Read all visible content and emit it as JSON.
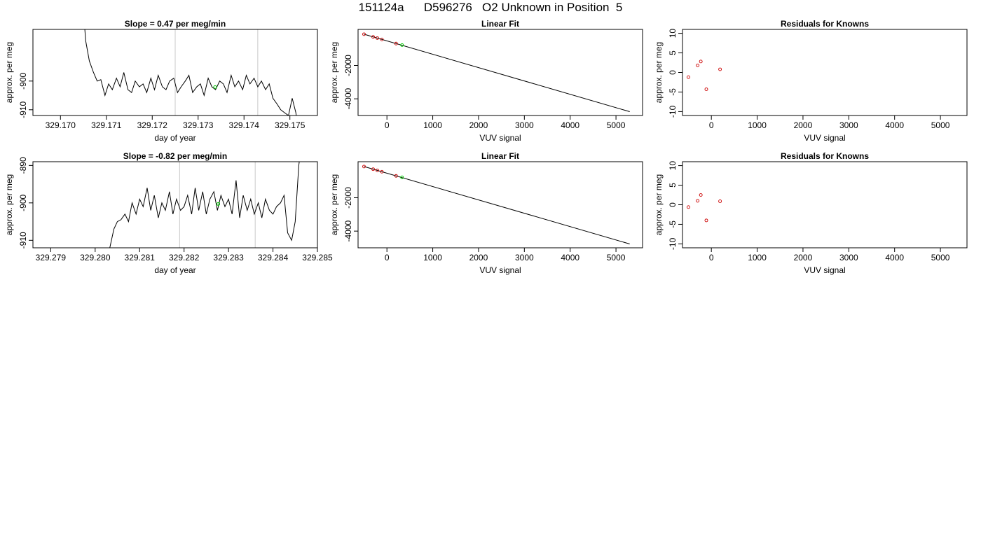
{
  "page_title": "151124a      D596276   O2 Unknown in Position  5",
  "chart_data": [
    {
      "type": "line",
      "title": "Slope =  0.47  per meg/min",
      "xlabel": "day of year",
      "ylabel": "approx. per meg",
      "xlim": [
        329.1694,
        329.1756
      ],
      "ylim": [
        -912,
        -882
      ],
      "xticks": [
        "329.170",
        "329.171",
        "329.172",
        "329.173",
        "329.174",
        "329.175"
      ],
      "xtick_values": [
        329.17,
        329.171,
        329.172,
        329.173,
        329.174,
        329.175
      ],
      "yticks": [
        "-910",
        "-900"
      ],
      "ytick_values": [
        -910,
        -900
      ],
      "vlines": [
        329.1725,
        329.1743
      ],
      "line_color": "#000000",
      "vline_color": "#c8c8c8",
      "highlight_color": "#00cc00",
      "highlight": {
        "x": 329.17337,
        "y": -902.1
      },
      "x": [
        329.17055,
        329.17063,
        329.17072,
        329.1708,
        329.17088,
        329.17097,
        329.17105,
        329.17113,
        329.17122,
        329.1713,
        329.17138,
        329.17147,
        329.17155,
        329.17163,
        329.17172,
        329.1718,
        329.17188,
        329.17197,
        329.17205,
        329.17213,
        329.17222,
        329.1723,
        329.17238,
        329.17247,
        329.17255,
        329.17263,
        329.17272,
        329.1728,
        329.17288,
        329.17297,
        329.17305,
        329.17313,
        329.17322,
        329.1733,
        329.17338,
        329.17347,
        329.17355,
        329.17363,
        329.17372,
        329.1738,
        329.17388,
        329.17397,
        329.17405,
        329.17413,
        329.17422,
        329.1743,
        329.17438,
        329.17447,
        329.17455,
        329.17463,
        329.17472,
        329.1748,
        329.17488,
        329.17497,
        329.17505,
        329.17513
      ],
      "y": [
        -886,
        -893,
        -897,
        -900,
        -899.5,
        -905,
        -901,
        -903,
        -899,
        -902,
        -897,
        -903,
        -904,
        -900,
        -902,
        -901,
        -904,
        -899,
        -903,
        -898,
        -902,
        -903,
        -900,
        -899,
        -904,
        -902,
        -900,
        -898,
        -904,
        -902,
        -901,
        -905,
        -899,
        -902,
        -903,
        -900,
        -901,
        -904,
        -898,
        -902,
        -900,
        -903,
        -898,
        -901,
        -899,
        -902,
        -900,
        -903,
        -901,
        -906,
        -908,
        -910,
        -911,
        -912,
        -906,
        -911
      ],
      "start_above": true,
      "end_below": true
    },
    {
      "type": "scatter",
      "title": "Linear Fit",
      "xlabel": "VUV signal",
      "ylabel": "approx. per meg",
      "xlim": [
        -630,
        5580
      ],
      "ylim": [
        -5000,
        160
      ],
      "xticks": [
        "0",
        "1000",
        "2000",
        "3000",
        "4000",
        "5000"
      ],
      "xtick_values": [
        0,
        1000,
        2000,
        3000,
        4000,
        5000
      ],
      "yticks": [
        "-4000",
        "-2000"
      ],
      "ytick_values": [
        -4000,
        -2000
      ],
      "points_color": "#cc0000",
      "highlight_color": "#00cc00",
      "line_color": "#000000",
      "fit_line": {
        "x": [
          -500,
          5300
        ],
        "y": [
          -130,
          -4770
        ]
      },
      "points": [
        {
          "x": -500,
          "y": -130
        },
        {
          "x": -300,
          "y": -290
        },
        {
          "x": -210,
          "y": -360
        },
        {
          "x": -110,
          "y": -440
        },
        {
          "x": 200,
          "y": -690
        }
      ],
      "highlight": {
        "x": 330,
        "y": -780
      }
    },
    {
      "type": "scatter",
      "title": "Residuals for Knowns",
      "xlabel": "VUV signal",
      "ylabel": "approx. per meg",
      "xlim": [
        -630,
        5580
      ],
      "ylim": [
        -11,
        11
      ],
      "xticks": [
        "0",
        "1000",
        "2000",
        "3000",
        "4000",
        "5000"
      ],
      "xtick_values": [
        0,
        1000,
        2000,
        3000,
        4000,
        5000
      ],
      "yticks": [
        "-10",
        "-5",
        "0",
        "5",
        "10"
      ],
      "ytick_values": [
        -10,
        -5,
        0,
        5,
        10
      ],
      "points_color": "#cc0000",
      "points": [
        {
          "x": -500,
          "y": -1.2
        },
        {
          "x": -300,
          "y": 1.8
        },
        {
          "x": -230,
          "y": 2.8
        },
        {
          "x": -110,
          "y": -4.3
        },
        {
          "x": 190,
          "y": 0.8
        }
      ]
    },
    {
      "type": "line",
      "title": "Slope =  -0.82  per meg/min",
      "xlabel": "day of year",
      "ylabel": "approx. per meg",
      "xlim": [
        329.2786,
        329.285
      ],
      "ylim": [
        -912,
        -889
      ],
      "xticks": [
        "329.279",
        "329.280",
        "329.281",
        "329.282",
        "329.283",
        "329.284",
        "329.285"
      ],
      "xtick_values": [
        329.279,
        329.28,
        329.281,
        329.282,
        329.283,
        329.284,
        329.285
      ],
      "yticks": [
        "-910",
        "-900",
        "-890"
      ],
      "ytick_values": [
        -910,
        -900,
        -890
      ],
      "vlines": [
        329.2819,
        329.2836
      ],
      "line_color": "#000000",
      "vline_color": "#c8c8c8",
      "highlight_color": "#00cc00",
      "highlight": {
        "x": 329.28277,
        "y": -900.3
      },
      "x": [
        329.28033,
        329.28042,
        329.2805,
        329.28058,
        329.28067,
        329.28075,
        329.28083,
        329.28092,
        329.281,
        329.28108,
        329.28117,
        329.28125,
        329.28133,
        329.28142,
        329.2815,
        329.28158,
        329.28167,
        329.28175,
        329.28183,
        329.28192,
        329.282,
        329.28208,
        329.28217,
        329.28225,
        329.28233,
        329.28242,
        329.2825,
        329.28258,
        329.28267,
        329.28275,
        329.28283,
        329.28292,
        329.283,
        329.28308,
        329.28317,
        329.28325,
        329.28333,
        329.28342,
        329.2835,
        329.28358,
        329.28367,
        329.28375,
        329.28383,
        329.28392,
        329.284,
        329.28408,
        329.28417,
        329.28425,
        329.28433,
        329.28442,
        329.2845,
        329.28458
      ],
      "y": [
        -912,
        -907,
        -905,
        -904.5,
        -903,
        -905,
        -900,
        -903,
        -899,
        -901,
        -896,
        -902,
        -898,
        -904,
        -900,
        -902,
        -897,
        -903,
        -899,
        -902,
        -901,
        -898,
        -903,
        -896,
        -902,
        -897,
        -903,
        -899,
        -897,
        -902,
        -898,
        -901,
        -899,
        -903,
        -894,
        -904,
        -898,
        -902,
        -899,
        -903,
        -900,
        -904,
        -899,
        -902,
        -903,
        -901,
        -900,
        -898,
        -908,
        -910,
        -905,
        -890
      ],
      "start_below": true,
      "end_above": true
    },
    {
      "type": "scatter",
      "title": "Linear Fit",
      "xlabel": "VUV signal",
      "ylabel": "approx. per meg",
      "xlim": [
        -630,
        5580
      ],
      "ylim": [
        -5000,
        160
      ],
      "xticks": [
        "0",
        "1000",
        "2000",
        "3000",
        "4000",
        "5000"
      ],
      "xtick_values": [
        0,
        1000,
        2000,
        3000,
        4000,
        5000
      ],
      "yticks": [
        "-4000",
        "-2000"
      ],
      "ytick_values": [
        -4000,
        -2000
      ],
      "points_color": "#cc0000",
      "highlight_color": "#00cc00",
      "line_color": "#000000",
      "fit_line": {
        "x": [
          -500,
          5300
        ],
        "y": [
          -130,
          -4770
        ]
      },
      "points": [
        {
          "x": -500,
          "y": -130
        },
        {
          "x": -300,
          "y": -290
        },
        {
          "x": -210,
          "y": -360
        },
        {
          "x": -110,
          "y": -440
        },
        {
          "x": 200,
          "y": -690
        }
      ],
      "highlight": {
        "x": 330,
        "y": -780
      }
    },
    {
      "type": "scatter",
      "title": "Residuals for Knowns",
      "xlabel": "VUV signal",
      "ylabel": "approx. per meg",
      "xlim": [
        -630,
        5580
      ],
      "ylim": [
        -11,
        11
      ],
      "xticks": [
        "0",
        "1000",
        "2000",
        "3000",
        "4000",
        "5000"
      ],
      "xtick_values": [
        0,
        1000,
        2000,
        3000,
        4000,
        5000
      ],
      "yticks": [
        "-10",
        "-5",
        "0",
        "5",
        "10"
      ],
      "ytick_values": [
        -10,
        -5,
        0,
        5,
        10
      ],
      "points_color": "#cc0000",
      "points": [
        {
          "x": -500,
          "y": -0.6
        },
        {
          "x": -300,
          "y": 1.0
        },
        {
          "x": -230,
          "y": 2.5
        },
        {
          "x": -110,
          "y": -4.0
        },
        {
          "x": 190,
          "y": 0.9
        }
      ]
    }
  ]
}
